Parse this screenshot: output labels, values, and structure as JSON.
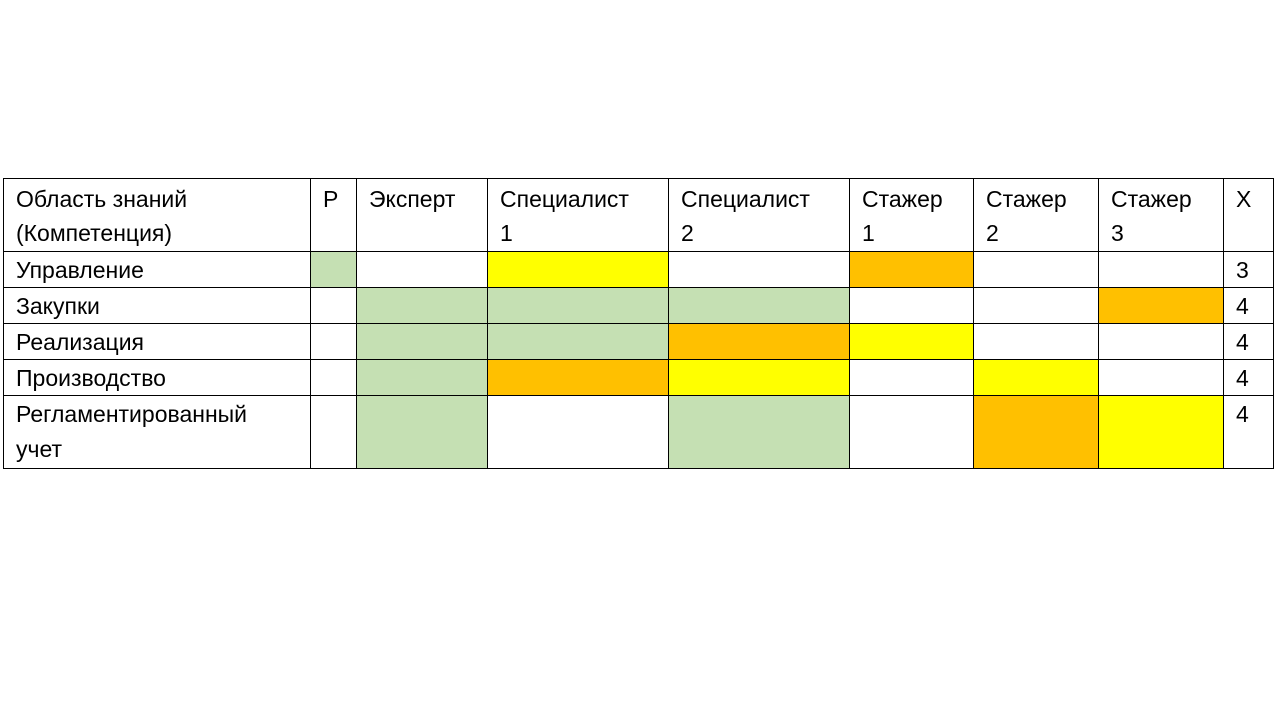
{
  "palette": {
    "green": "#C5E0B3",
    "yellow": "#FFFF00",
    "orange": "#FFC000",
    "none": "#FFFFFF"
  },
  "table": {
    "headers": [
      "Область знаний\n(Компетенция)",
      "Р",
      "Эксперт",
      "Специалист\n1",
      "Специалист\n2",
      "Стажер\n1",
      "Стажер\n2",
      "Стажер\n3",
      "Х"
    ],
    "rows": [
      {
        "label": "Управление",
        "cells": [
          "green",
          "none",
          "yellow",
          "none",
          "orange",
          "none",
          "none"
        ],
        "count": "3"
      },
      {
        "label": "Закупки",
        "cells": [
          "none",
          "green",
          "green",
          "green",
          "none",
          "none",
          "orange"
        ],
        "count": "4"
      },
      {
        "label": "Реализация",
        "cells": [
          "none",
          "green",
          "green",
          "orange",
          "yellow",
          "none",
          "none"
        ],
        "count": "4"
      },
      {
        "label": "Производство",
        "cells": [
          "none",
          "green",
          "orange",
          "yellow",
          "none",
          "yellow",
          "none"
        ],
        "count": "4"
      },
      {
        "label": "Регламентированный\nучет",
        "cells": [
          "none",
          "green",
          "none",
          "green",
          "none",
          "orange",
          "yellow"
        ],
        "count": "4"
      }
    ]
  }
}
